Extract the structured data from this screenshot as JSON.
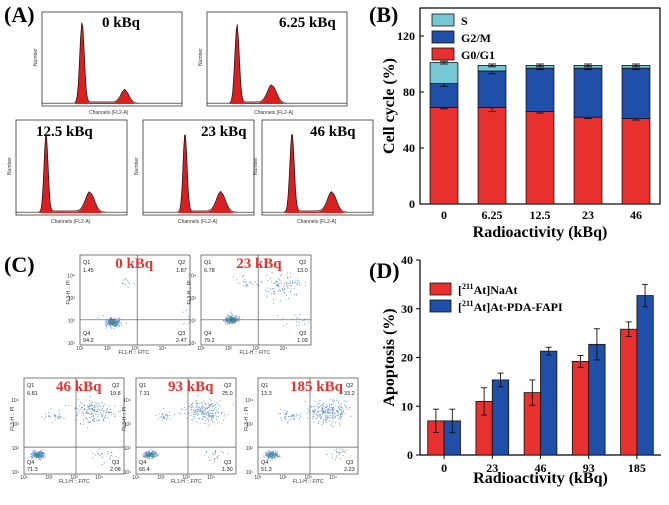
{
  "panels": {
    "a": {
      "label": "(A)"
    },
    "b": {
      "label": "(B)"
    },
    "c": {
      "label": "(C)"
    },
    "d": {
      "label": "(D)"
    }
  },
  "flow_histograms": {
    "axis_x": "Channels (FL2-A)",
    "axis_y": "Number",
    "plots": [
      {
        "title": "0 kBq"
      },
      {
        "title": "6.25 kBq"
      },
      {
        "title": "12.5 kBq"
      },
      {
        "title": "23 kBq"
      },
      {
        "title": "46 kBq"
      }
    ]
  },
  "flow_scatter": {
    "axis_x": "FL1-H :: FITC",
    "axis_y": "FL3-H :: PI",
    "title_color": "#e8312f",
    "plots": [
      {
        "title": "0 kBq",
        "q1": "Q1",
        "q2": "Q2",
        "q3": "Q3",
        "q4": "Q4",
        "v1": "1.45",
        "v2": "1.87",
        "v3": "2.47",
        "v4": "94.2"
      },
      {
        "title": "23 kBq",
        "q1": "Q1",
        "q2": "Q2",
        "q3": "Q3",
        "q4": "Q4",
        "v1": "6.78",
        "v2": "13.0",
        "v3": "1.09",
        "v4": "79.2"
      },
      {
        "title": "46 kBq",
        "q1": "Q1",
        "q2": "Q2",
        "q3": "Q3",
        "q4": "Q4",
        "v1": "6.81",
        "v2": "19.8",
        "v3": "2.08",
        "v4": "71.3"
      },
      {
        "title": "93 kBq",
        "q1": "Q1",
        "q2": "Q2",
        "q3": "Q3",
        "q4": "Q4",
        "v1": "7.31",
        "v2": "25.0",
        "v3": "1.30",
        "v4": "66.4"
      },
      {
        "title": "185 kBq",
        "q1": "Q1",
        "q2": "Q2",
        "q3": "Q3",
        "q4": "Q4",
        "v1": "13.3",
        "v2": "33.2",
        "v3": "2.23",
        "v4": "51.3"
      }
    ]
  },
  "chart_data": [
    {
      "type": "bar",
      "stacked": true,
      "xlabel": "Radioactivity (kBq)",
      "ylabel": "Cell cycle (%)",
      "categories": [
        "0",
        "6.25",
        "12.5",
        "23",
        "46"
      ],
      "ylim": [
        0,
        140
      ],
      "yticks": [
        "0",
        "40",
        "80",
        "120"
      ],
      "series": [
        {
          "name": "G0/G1",
          "color": "#e8312f",
          "values": [
            69,
            69,
            66,
            62,
            61
          ],
          "errors": [
            1,
            3,
            1,
            1,
            1
          ]
        },
        {
          "name": "G2/M",
          "color": "#1f4fa8",
          "values": [
            17,
            26,
            31,
            35,
            36
          ],
          "errors": [
            2,
            2,
            1,
            1,
            1
          ]
        },
        {
          "name": "S",
          "color": "#74c7d3",
          "values": [
            15,
            4,
            2,
            2,
            2
          ],
          "errors": [
            1,
            1,
            1,
            1,
            1
          ]
        }
      ],
      "legend": [
        "S",
        "G2/M",
        "G0/G1"
      ]
    },
    {
      "type": "bar",
      "xlabel": "Radioactivity (kBq)",
      "ylabel": "Apoptosis (%)",
      "categories": [
        "0",
        "23",
        "46",
        "93",
        "185"
      ],
      "ylim": [
        0,
        40
      ],
      "yticks": [
        "0",
        "10",
        "20",
        "30",
        "40"
      ],
      "series": [
        {
          "name": "[211At]NaAt",
          "color": "#e8312f",
          "values": [
            7.0,
            11.0,
            12.8,
            19.2,
            25.8
          ],
          "errors": [
            2.4,
            2.8,
            2.6,
            1.2,
            1.5
          ]
        },
        {
          "name": "[211At]At-PDA-FAPI",
          "color": "#1f4fa8",
          "values": [
            7.0,
            15.4,
            21.3,
            22.7,
            32.7
          ],
          "errors": [
            2.4,
            1.4,
            0.8,
            3.2,
            2.3
          ]
        }
      ],
      "legend": [
        {
          "sup": "211",
          "pre": "[",
          "post": "At]NaAt"
        },
        {
          "sup": "211",
          "pre": "[",
          "post": "At]At-PDA-FAPI"
        }
      ]
    }
  ]
}
